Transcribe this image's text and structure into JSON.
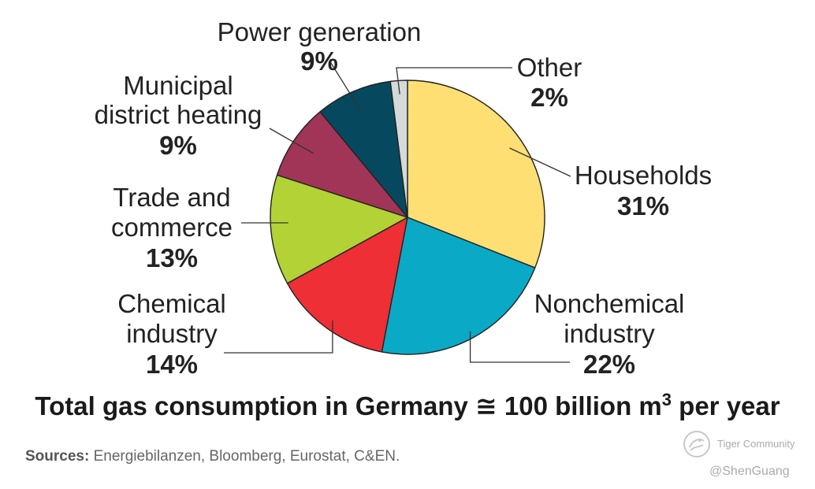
{
  "chart_data": {
    "type": "pie",
    "title_prefix": "Total gas consumption in Germany ≅ 100 billion m",
    "title_superscript": "3",
    "title_suffix": " per year",
    "unit": "%",
    "slices": [
      {
        "name": "Households",
        "lines": [
          "Households"
        ],
        "value": 31,
        "label": "31%",
        "color": "#FEDF73"
      },
      {
        "name": "Nonchemical industry",
        "lines": [
          "Nonchemical",
          "industry"
        ],
        "value": 22,
        "label": "22%",
        "color": "#0AA9C6"
      },
      {
        "name": "Chemical industry",
        "lines": [
          "Chemical",
          "industry"
        ],
        "value": 14,
        "label": "14%",
        "color": "#EE2F36"
      },
      {
        "name": "Trade and commerce",
        "lines": [
          "Trade and",
          "commerce"
        ],
        "value": 13,
        "label": "13%",
        "color": "#B2D235"
      },
      {
        "name": "Municipal district heating",
        "lines": [
          "Municipal",
          "district heating"
        ],
        "value": 9,
        "label": "9%",
        "color": "#A03558"
      },
      {
        "name": "Power generation",
        "lines": [
          "Power generation"
        ],
        "value": 9,
        "label": "9%",
        "color": "#06495E"
      },
      {
        "name": "Other",
        "lines": [
          "Other"
        ],
        "value": 2,
        "label": "2%",
        "color": "#D3DAD9"
      }
    ]
  },
  "sources": {
    "label": "Sources:",
    "text": " Energiebilanzen, Bloomberg, Eurostat, C&EN."
  },
  "watermark": {
    "brand": "Tiger Community",
    "handle": "@ShenGuang"
  }
}
